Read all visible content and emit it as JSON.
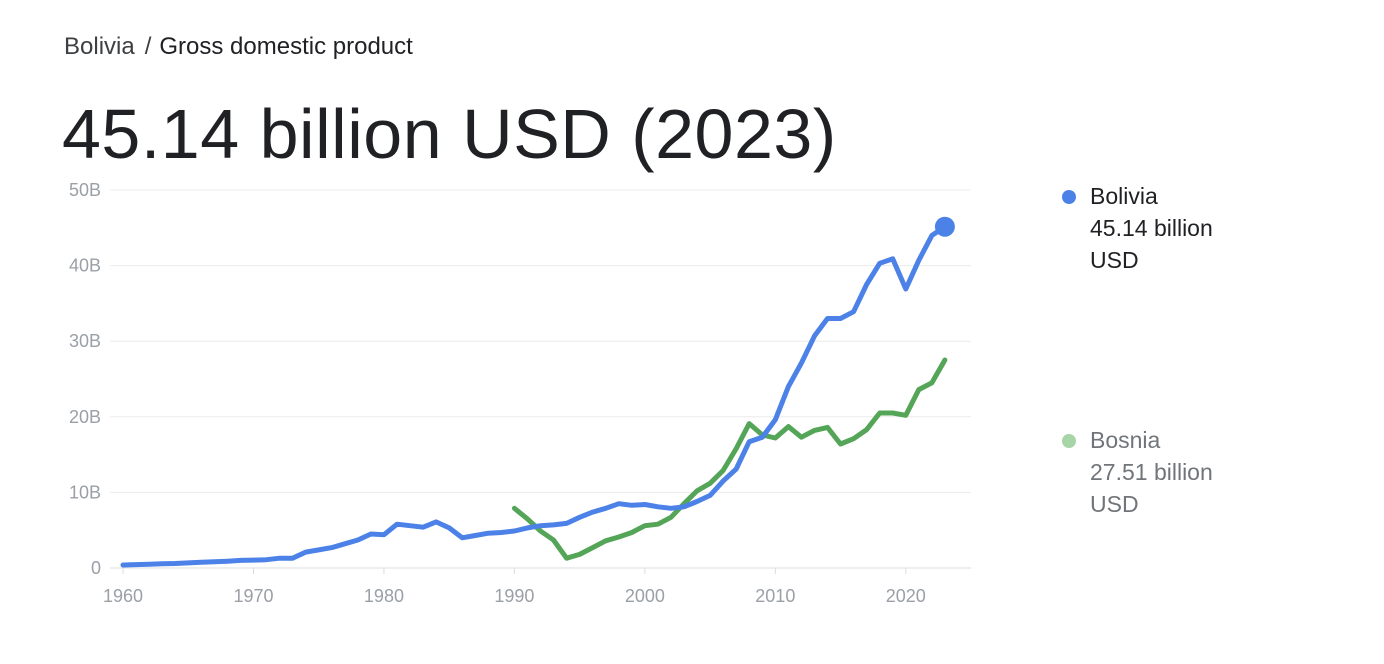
{
  "breadcrumb": {
    "country": "Bolivia",
    "separator": "/",
    "metric": "Gross domestic product"
  },
  "headline": "45.14 billion USD (2023)",
  "legend": [
    {
      "name": "Bolivia",
      "value": "45.14 billion",
      "unit": "USD",
      "color": "#4c82e8"
    },
    {
      "name": "Bosnia",
      "value": "27.51 billion",
      "unit": "USD",
      "color": "#a8d5a8"
    }
  ],
  "chart_data": {
    "type": "line",
    "xlim": [
      1959,
      2025
    ],
    "ylim": [
      0,
      50
    ],
    "grid": true,
    "legend_position": "right",
    "x_ticks": [
      {
        "value": 1960,
        "label": "1960"
      },
      {
        "value": 1970,
        "label": "1970"
      },
      {
        "value": 1980,
        "label": "1980"
      },
      {
        "value": 1990,
        "label": "1990"
      },
      {
        "value": 2000,
        "label": "2000"
      },
      {
        "value": 2010,
        "label": "2010"
      },
      {
        "value": 2020,
        "label": "2020"
      }
    ],
    "y_ticks": [
      {
        "value": 0,
        "label": "0"
      },
      {
        "value": 10,
        "label": "10B"
      },
      {
        "value": 20,
        "label": "20B"
      },
      {
        "value": 30,
        "label": "30B"
      },
      {
        "value": 40,
        "label": "40B"
      },
      {
        "value": 50,
        "label": "50B"
      }
    ],
    "series": [
      {
        "name": "Bolivia",
        "color": "#4c82e8",
        "highlight_last": true,
        "points": [
          [
            1960,
            0.4
          ],
          [
            1961,
            0.45
          ],
          [
            1962,
            0.5
          ],
          [
            1963,
            0.55
          ],
          [
            1964,
            0.6
          ],
          [
            1965,
            0.68
          ],
          [
            1966,
            0.75
          ],
          [
            1967,
            0.82
          ],
          [
            1968,
            0.9
          ],
          [
            1969,
            1.0
          ],
          [
            1970,
            1.05
          ],
          [
            1971,
            1.1
          ],
          [
            1972,
            1.3
          ],
          [
            1973,
            1.3
          ],
          [
            1974,
            2.1
          ],
          [
            1975,
            2.4
          ],
          [
            1976,
            2.7
          ],
          [
            1977,
            3.2
          ],
          [
            1978,
            3.7
          ],
          [
            1979,
            4.5
          ],
          [
            1980,
            4.4
          ],
          [
            1981,
            5.8
          ],
          [
            1982,
            5.6
          ],
          [
            1983,
            5.4
          ],
          [
            1984,
            6.1
          ],
          [
            1985,
            5.3
          ],
          [
            1986,
            4.0
          ],
          [
            1987,
            4.3
          ],
          [
            1988,
            4.6
          ],
          [
            1989,
            4.7
          ],
          [
            1990,
            4.9
          ],
          [
            1991,
            5.3
          ],
          [
            1992,
            5.6
          ],
          [
            1993,
            5.7
          ],
          [
            1994,
            5.9
          ],
          [
            1995,
            6.7
          ],
          [
            1996,
            7.4
          ],
          [
            1997,
            7.9
          ],
          [
            1998,
            8.5
          ],
          [
            1999,
            8.3
          ],
          [
            2000,
            8.4
          ],
          [
            2001,
            8.1
          ],
          [
            2002,
            7.9
          ],
          [
            2003,
            8.1
          ],
          [
            2004,
            8.8
          ],
          [
            2005,
            9.6
          ],
          [
            2006,
            11.5
          ],
          [
            2007,
            13.1
          ],
          [
            2008,
            16.7
          ],
          [
            2009,
            17.3
          ],
          [
            2010,
            19.6
          ],
          [
            2011,
            24.0
          ],
          [
            2012,
            27.1
          ],
          [
            2013,
            30.7
          ],
          [
            2014,
            33.0
          ],
          [
            2015,
            33.0
          ],
          [
            2016,
            33.9
          ],
          [
            2017,
            37.5
          ],
          [
            2018,
            40.3
          ],
          [
            2019,
            40.9
          ],
          [
            2020,
            36.9
          ],
          [
            2021,
            40.7
          ],
          [
            2022,
            44.0
          ],
          [
            2023,
            45.14
          ]
        ]
      },
      {
        "name": "Bosnia",
        "color": "#54a557",
        "highlight_last": false,
        "points": [
          [
            1990,
            7.9
          ],
          [
            1991,
            6.5
          ],
          [
            1992,
            4.9
          ],
          [
            1993,
            3.7
          ],
          [
            1994,
            1.3
          ],
          [
            1995,
            1.8
          ],
          [
            1996,
            2.7
          ],
          [
            1997,
            3.6
          ],
          [
            1998,
            4.1
          ],
          [
            1999,
            4.7
          ],
          [
            2000,
            5.6
          ],
          [
            2001,
            5.8
          ],
          [
            2002,
            6.7
          ],
          [
            2003,
            8.5
          ],
          [
            2004,
            10.2
          ],
          [
            2005,
            11.2
          ],
          [
            2006,
            12.9
          ],
          [
            2007,
            15.8
          ],
          [
            2008,
            19.1
          ],
          [
            2009,
            17.6
          ],
          [
            2010,
            17.2
          ],
          [
            2011,
            18.7
          ],
          [
            2012,
            17.3
          ],
          [
            2013,
            18.2
          ],
          [
            2014,
            18.6
          ],
          [
            2015,
            16.4
          ],
          [
            2016,
            17.1
          ],
          [
            2017,
            18.3
          ],
          [
            2018,
            20.5
          ],
          [
            2019,
            20.5
          ],
          [
            2020,
            20.2
          ],
          [
            2021,
            23.6
          ],
          [
            2022,
            24.5
          ],
          [
            2023,
            27.51
          ]
        ]
      }
    ]
  }
}
